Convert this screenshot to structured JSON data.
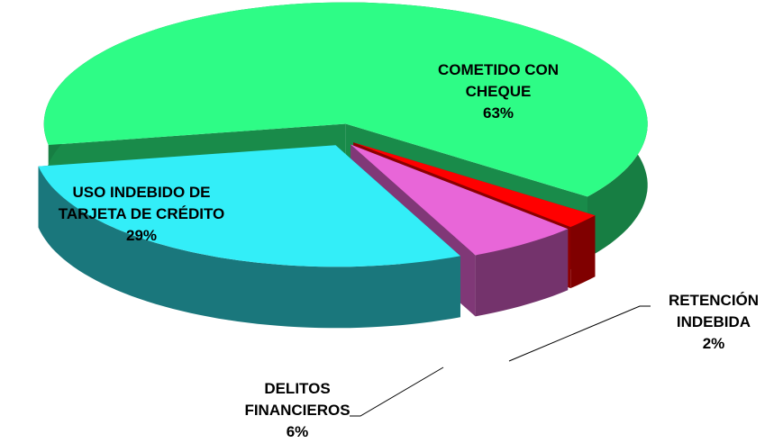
{
  "chart_data": {
    "type": "pie",
    "categories": [
      "COMETIDO CON CHEQUE",
      "RETENCIÓN INDEBIDA",
      "DELITOS FINANCIEROS",
      "USO INDEBIDO DE TARJETA DE CRÉDITO"
    ],
    "values": [
      63,
      2,
      6,
      29
    ],
    "value_labels": [
      "63%",
      "2%",
      "6%",
      "29%"
    ],
    "colors": [
      "#2efc86",
      "#ff0000",
      "#e866d8",
      "#33eef8"
    ]
  }
}
